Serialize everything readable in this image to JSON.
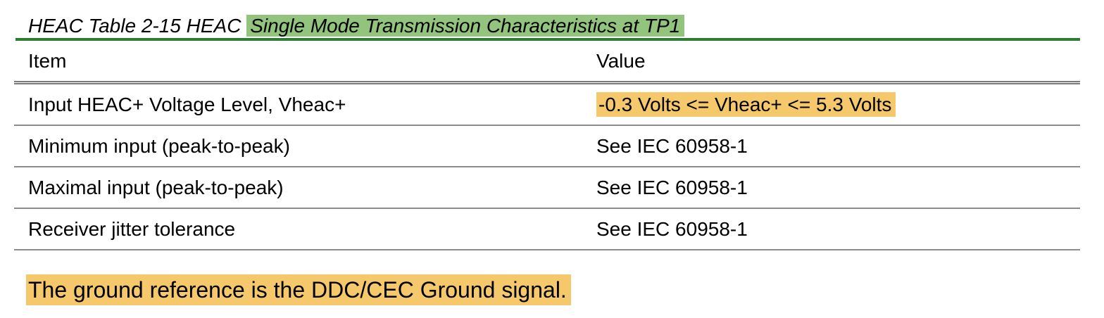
{
  "caption": {
    "prefix": "HEAC Table 2-15 HEAC ",
    "title": "Single Mode Transmission Characteristics at TP1",
    "highlight_color": "#92c47d",
    "rule_color": "#2e7d32"
  },
  "table": {
    "headers": [
      "Item",
      "Value"
    ],
    "rows": [
      {
        "item": "Input HEAC+ Voltage Level, Vheac+",
        "value": "-0.3 Volts <= Vheac+ <= 5.3 Volts",
        "value_highlighted": true
      },
      {
        "item": "Minimum input (peak-to-peak)",
        "value": "See IEC 60958-1",
        "value_highlighted": false
      },
      {
        "item": "Maximal input (peak-to-peak)",
        "value": "See IEC 60958-1",
        "value_highlighted": false
      },
      {
        "item": "Receiver jitter tolerance",
        "value": "See IEC 60958-1",
        "value_highlighted": false
      }
    ]
  },
  "note": {
    "text": "The ground reference is the DDC/CEC Ground signal.",
    "highlight_color": "#f5c96b"
  }
}
